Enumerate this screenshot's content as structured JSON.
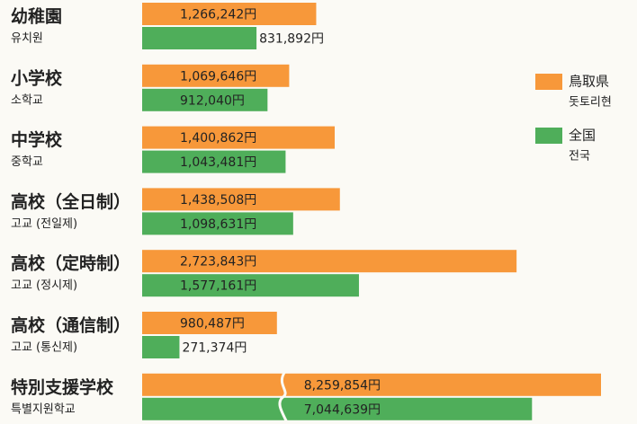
{
  "chart_data": {
    "type": "bar",
    "orientation": "horizontal",
    "categories": [
      "幼稚園",
      "小学校",
      "中学校",
      "高校（全日制）",
      "高校（定時制）",
      "高校（通信制）",
      "特別支援学校"
    ],
    "categories_ko": [
      "유치원",
      "소학교",
      "중학교",
      "고교 (전일제)",
      "고교 (정시제)",
      "고교 (통신제)",
      "특별지원학교"
    ],
    "xlim": [
      0,
      3600000
    ],
    "axis_break": {
      "category": 6,
      "range": [
        1000000,
        2600000
      ]
    },
    "legend": "right",
    "series": [
      {
        "name": "鳥取県",
        "name_ko": "돗토리현",
        "color": "#f7983a",
        "values": [
          1266242,
          1069646,
          1400862,
          1438508,
          2723843,
          980487,
          8259854
        ],
        "value_labels": [
          "1,266,242円",
          "1,069,646円",
          "1,400,862円",
          "1,438,508円",
          "2,723,843円",
          "980,487円",
          "8,259,854円"
        ]
      },
      {
        "name": "全国",
        "name_ko": "전국",
        "color": "#4fae5a",
        "values": [
          831892,
          912040,
          1043481,
          1098631,
          1577161,
          271374,
          7044639
        ],
        "value_labels": [
          "831,892円",
          "912,040円",
          "1,043,481円",
          "1,098,631円",
          "1,577,161円",
          "271,374円",
          "7,044,639円"
        ]
      }
    ]
  }
}
